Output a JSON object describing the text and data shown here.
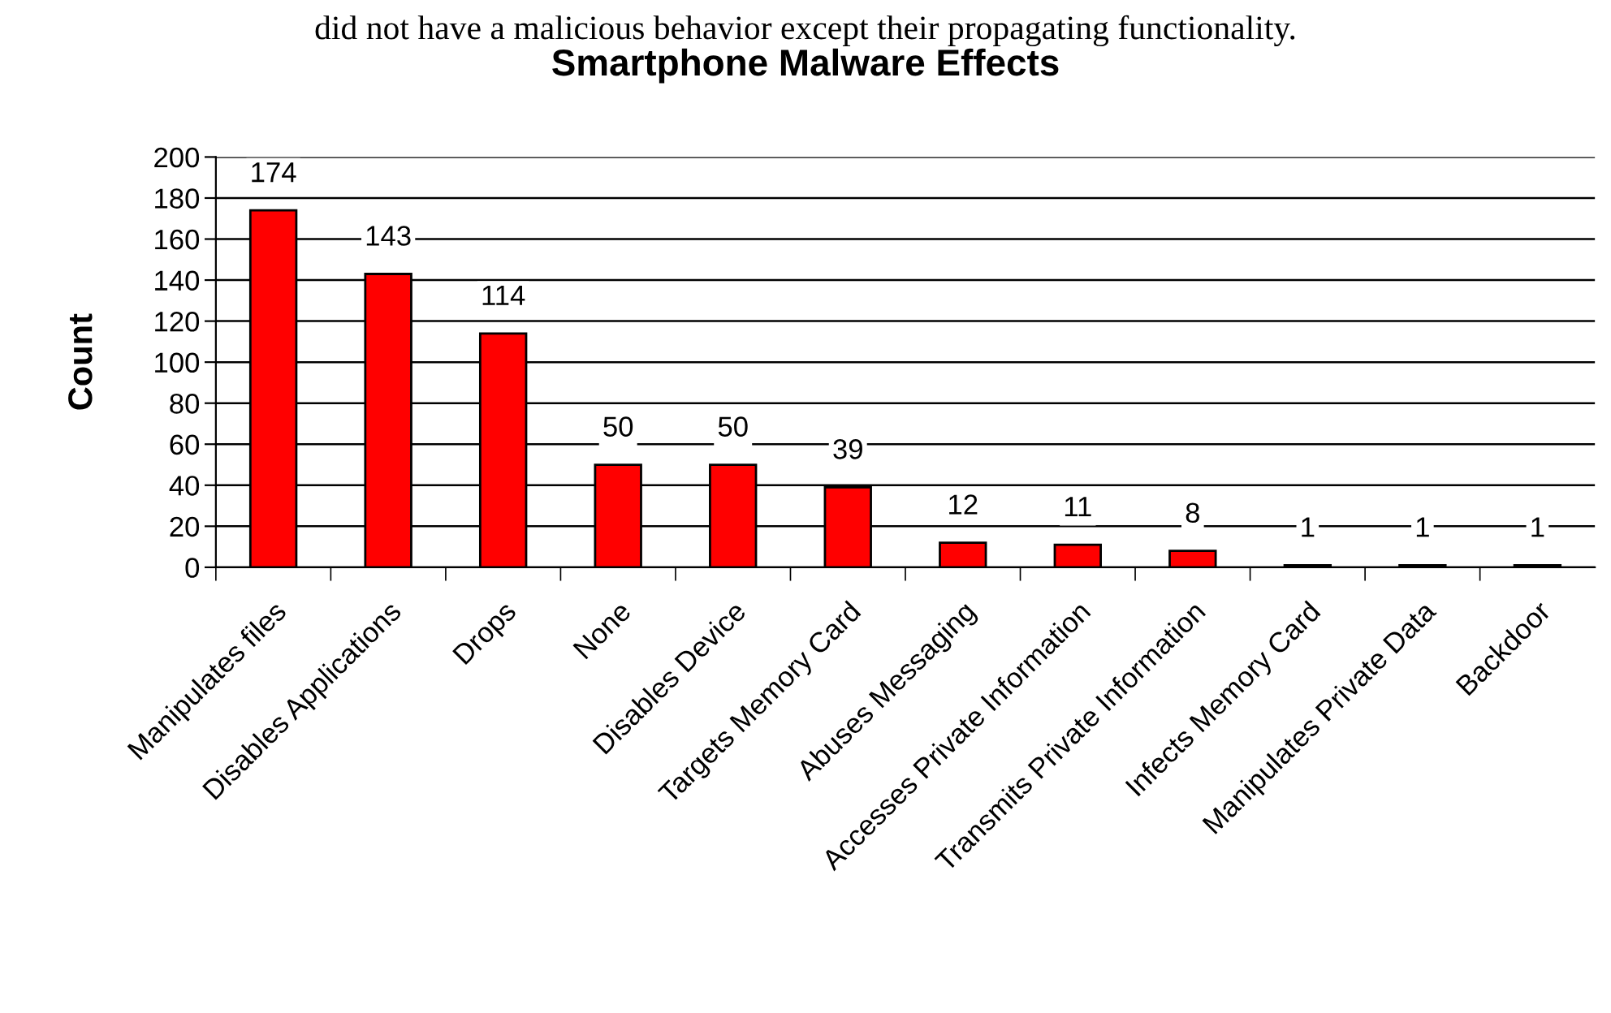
{
  "chart_data": {
    "type": "bar",
    "title": "Smartphone Malware Effects",
    "ylabel": "Count",
    "categories": [
      "Manipulates files",
      "Disables Applications",
      "Drops",
      "None",
      "Disables Device",
      "Targets Memory Card",
      "Abuses Messaging",
      "Accesses Private Information",
      "Transmits Private Information",
      "Infects Memory Card",
      "Manipulates Private Data",
      "Backdoor"
    ],
    "values": [
      174,
      143,
      114,
      50,
      50,
      39,
      12,
      11,
      8,
      1,
      1,
      1
    ],
    "color": "#ff0000",
    "ylim": [
      0,
      200
    ],
    "yticks": [
      0,
      20,
      40,
      60,
      80,
      100,
      120,
      140,
      160,
      180,
      200
    ],
    "grid": "y",
    "data_labels": true,
    "annotations": [
      "did not have a malicious behavior except their propagating functionality."
    ]
  }
}
